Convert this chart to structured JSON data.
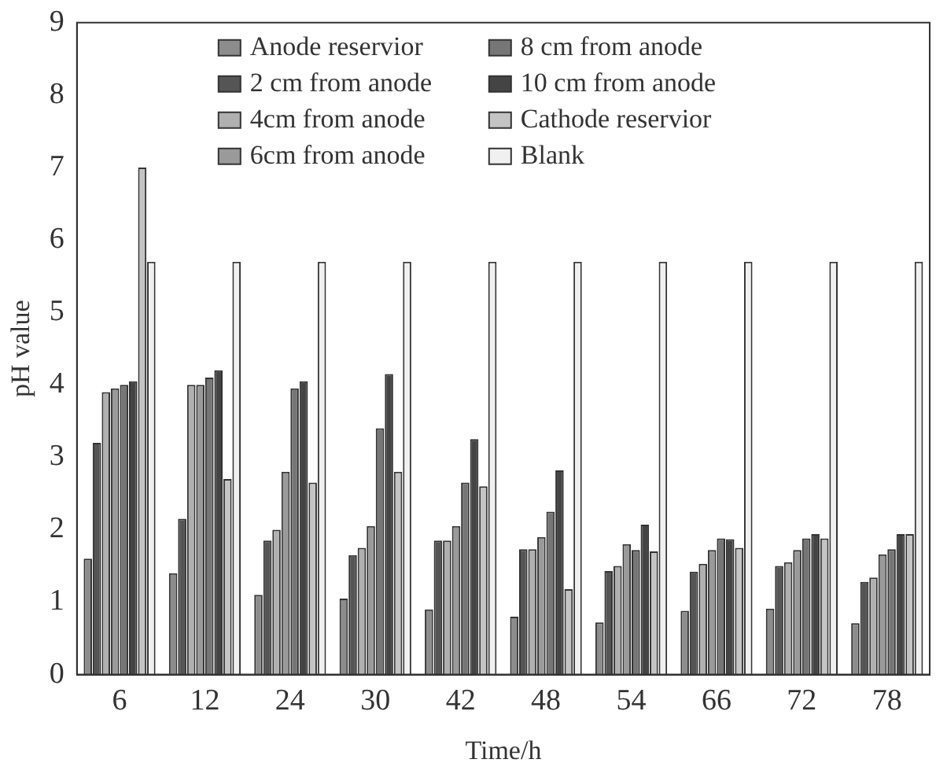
{
  "chart_data": {
    "type": "bar",
    "xlabel": "Time/h",
    "ylabel": "pH value",
    "categories": [
      "6",
      "12",
      "24",
      "30",
      "42",
      "48",
      "54",
      "66",
      "72",
      "78"
    ],
    "series": [
      {
        "name": "Anode reservior",
        "color": "#8c8c8c",
        "values": [
          1.6,
          1.4,
          1.1,
          1.05,
          0.9,
          0.8,
          0.72,
          0.88,
          0.91,
          0.71
        ]
      },
      {
        "name": "2 cm from anode",
        "color": "#555555",
        "values": [
          3.2,
          2.15,
          1.85,
          1.65,
          1.85,
          1.73,
          1.43,
          1.42,
          1.5,
          1.28
        ]
      },
      {
        "name": "4cm from anode",
        "color": "#b0b0b0",
        "values": [
          3.9,
          4.0,
          2.0,
          1.75,
          1.85,
          1.73,
          1.5,
          1.53,
          1.55,
          1.34
        ]
      },
      {
        "name": "6cm from anode",
        "color": "#9a9a9a",
        "values": [
          3.95,
          4.0,
          2.8,
          2.05,
          2.05,
          1.9,
          1.8,
          1.72,
          1.72,
          1.66
        ]
      },
      {
        "name": "8 cm from anode",
        "color": "#767676",
        "values": [
          4.0,
          4.1,
          3.95,
          3.4,
          2.65,
          2.25,
          1.72,
          1.88,
          1.88,
          1.73
        ]
      },
      {
        "name": "10 cm from anode",
        "color": "#444444",
        "values": [
          4.05,
          4.2,
          4.05,
          4.15,
          3.25,
          2.82,
          2.07,
          1.87,
          1.94,
          1.94
        ]
      },
      {
        "name": "Cathode reservior",
        "color": "#c4c4c4",
        "values": [
          7.0,
          2.7,
          2.65,
          2.8,
          2.6,
          1.18,
          1.7,
          1.75,
          1.88,
          1.94
        ]
      },
      {
        "name": "Blank",
        "color": "#f0f0f0",
        "values": [
          5.7,
          5.7,
          5.7,
          5.7,
          5.7,
          5.7,
          5.7,
          5.7,
          5.7,
          5.7
        ]
      }
    ],
    "ylim": [
      0,
      9
    ],
    "yticks": [
      0,
      1,
      2,
      3,
      4,
      5,
      6,
      7,
      8,
      9
    ],
    "grid": false,
    "legend": "top left"
  }
}
